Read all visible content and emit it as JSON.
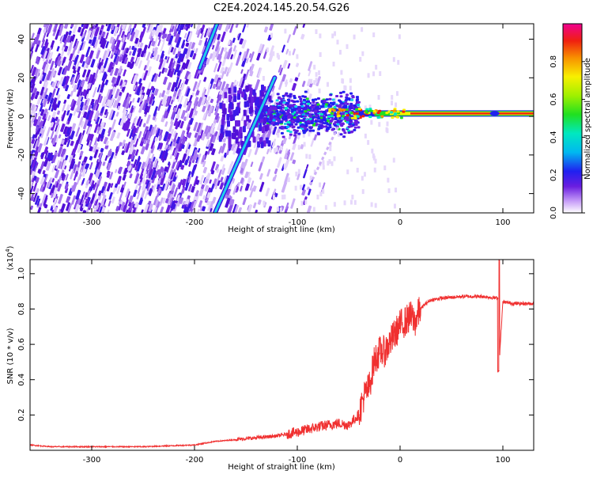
{
  "title": "C2E4.2024.145.20.54.G26",
  "colors": {
    "snr_line": "#f03030",
    "trace_cyan": "#20d0e8",
    "noise_purple": "#6a1ee0",
    "carrier_red": "#f02010"
  },
  "chart_data": [
    {
      "type": "heatmap",
      "title": "C2E4.2024.145.20.54.G26",
      "xlabel": "Height of straight line (km)",
      "ylabel": "Frequency (Hz)",
      "xlim": [
        -360,
        130
      ],
      "ylim": [
        -50,
        48
      ],
      "x_ticks": [
        -300,
        -200,
        -100,
        0,
        100
      ],
      "x_tick_labels": [
        "-300",
        "-200",
        "-100",
        "0",
        "100"
      ],
      "y_ticks": [
        -40,
        -20,
        0,
        20,
        40
      ],
      "y_tick_labels": [
        "-40",
        "-20",
        "0",
        "20",
        "40"
      ],
      "colorbar": {
        "label": "Normalized spectral amplitude",
        "range": [
          0,
          1
        ],
        "ticks": [
          0.0,
          0.2,
          0.4,
          0.6,
          0.8
        ],
        "tick_labels": [
          "0.0",
          "0.2",
          "0.4",
          "0.6",
          "0.8"
        ]
      },
      "features": [
        {
          "name": "diagonal-trace-upper",
          "from": [
            -195,
            25
          ],
          "to": [
            -178,
            48
          ]
        },
        {
          "name": "diagonal-trace-main",
          "from": [
            -180,
            -50
          ],
          "to": [
            -122,
            20
          ]
        },
        {
          "name": "carrier-line",
          "freq": 1.5,
          "x_start": -70,
          "x_end": 130
        }
      ]
    },
    {
      "type": "line",
      "xlabel": "Height of straight line (km)",
      "ylabel": "SNR (10 * v/v)",
      "y_multiplier_label": "(x10",
      "y_multiplier_exp": "4",
      "y_multiplier_close": ")",
      "xlim": [
        -360,
        130
      ],
      "ylim": [
        0,
        1.08
      ],
      "x_ticks": [
        -300,
        -200,
        -100,
        0,
        100
      ],
      "x_tick_labels": [
        "-300",
        "-200",
        "-100",
        "0",
        "100"
      ],
      "y_ticks": [
        0.2,
        0.4,
        0.6,
        0.8,
        1.0
      ],
      "y_tick_labels": [
        "0.2",
        "0.4",
        "0.6",
        "0.8",
        "1.0"
      ],
      "series": [
        {
          "name": "SNR",
          "color": "#f03030",
          "x": [
            -360,
            -340,
            -300,
            -250,
            -200,
            -180,
            -160,
            -140,
            -120,
            -100,
            -80,
            -60,
            -50,
            -40,
            -35,
            -30,
            -25,
            -20,
            -15,
            -10,
            -5,
            0,
            5,
            10,
            15,
            20,
            25,
            30,
            40,
            60,
            80,
            95,
            96,
            100,
            110,
            120,
            130
          ],
          "values": [
            0.03,
            0.02,
            0.02,
            0.02,
            0.03,
            0.05,
            0.06,
            0.07,
            0.08,
            0.1,
            0.13,
            0.15,
            0.14,
            0.2,
            0.3,
            0.35,
            0.5,
            0.55,
            0.55,
            0.6,
            0.65,
            0.7,
            0.72,
            0.75,
            0.72,
            0.8,
            0.83,
            0.85,
            0.86,
            0.87,
            0.87,
            0.86,
            0.45,
            0.84,
            0.83,
            0.83,
            0.83
          ]
        }
      ]
    }
  ]
}
